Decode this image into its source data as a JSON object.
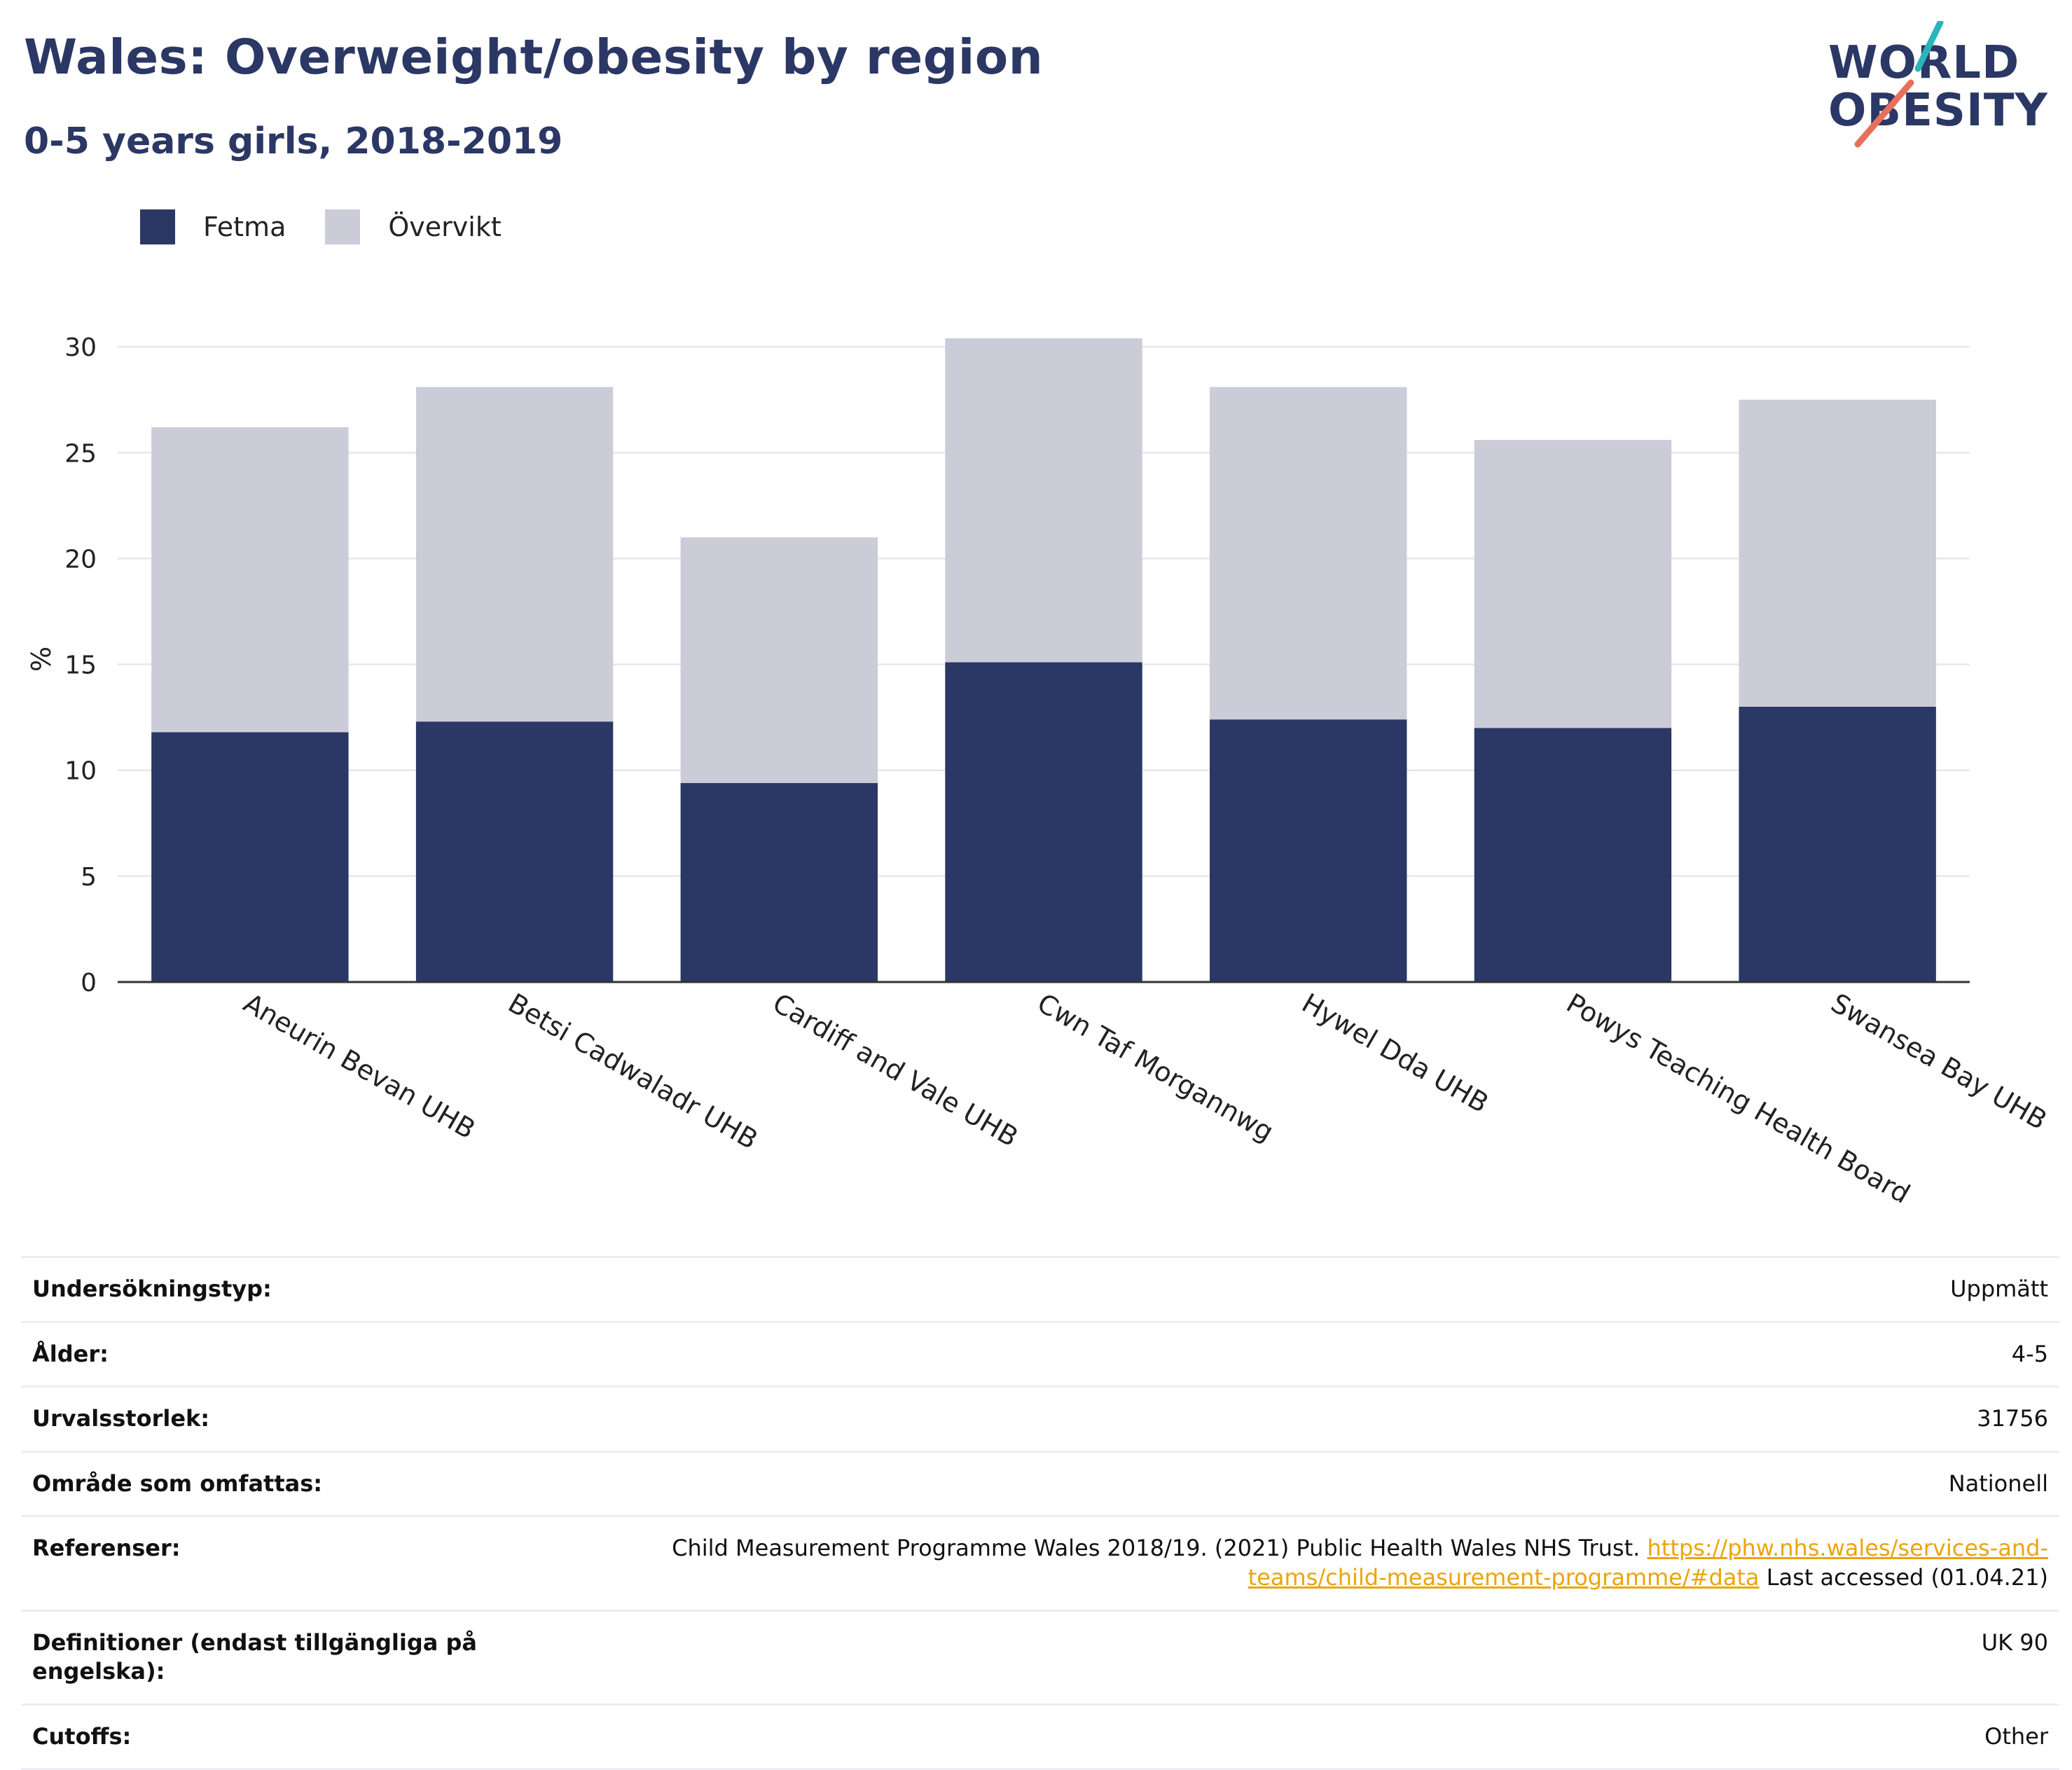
{
  "header": {
    "title": "Wales: Overweight/obesity by region",
    "subtitle": "0-5 years girls, 2018-2019",
    "logo_line1": "WORLD",
    "logo_line2": "OBESITY"
  },
  "colors": {
    "fetma": "#2b3764",
    "overvikt": "#cbccd8",
    "title": "#2b3764",
    "link": "#e9a50a",
    "logo_teal": "#2bb5b8",
    "logo_coral": "#e8705b"
  },
  "legend": [
    {
      "label": "Fetma",
      "color": "#2b3764"
    },
    {
      "label": "Övervikt",
      "color": "#cbccd8"
    }
  ],
  "chart_data": {
    "type": "bar",
    "stacked": true,
    "categories": [
      "Aneurin Bevan UHB",
      "Betsi Cadwaladr UHB",
      "Cardiff and Vale UHB",
      "Cwn Taf Morgannwg",
      "Hywel Dda UHB",
      "Powys Teaching Health Board",
      "Swansea Bay UHB"
    ],
    "series": [
      {
        "name": "Fetma",
        "values": [
          11.8,
          12.3,
          9.4,
          15.1,
          12.4,
          12.0,
          13.0
        ]
      },
      {
        "name": "Övervikt",
        "values": [
          14.4,
          15.8,
          11.6,
          15.3,
          15.7,
          13.6,
          14.5
        ]
      }
    ],
    "ylabel": "%",
    "ylim": [
      0,
      30.5
    ],
    "yticks": [
      0,
      5,
      10,
      15,
      20,
      25,
      30
    ],
    "grid": true,
    "legend_position": "top-left"
  },
  "meta": [
    {
      "key": "Undersökningstyp:",
      "value": "Uppmätt"
    },
    {
      "key": "Ålder:",
      "value": "4-5"
    },
    {
      "key": "Urvalsstorlek:",
      "value": "31756"
    },
    {
      "key": "Område som omfattas:",
      "value": "Nationell"
    },
    {
      "key": "Definitioner (endast tillgängliga på engelska):",
      "value": "UK 90"
    },
    {
      "key": "Cutoffs:",
      "value": "Other"
    }
  ],
  "references": {
    "key": "Referenser:",
    "text": "Child Measurement Programme Wales 2018/19. (2021) Public Health Wales NHS Trust.",
    "link": "https://phw.nhs.wales/services-and-teams/child-measurement-programme/#data",
    "suffix": "Last accessed (01.04.21)"
  }
}
